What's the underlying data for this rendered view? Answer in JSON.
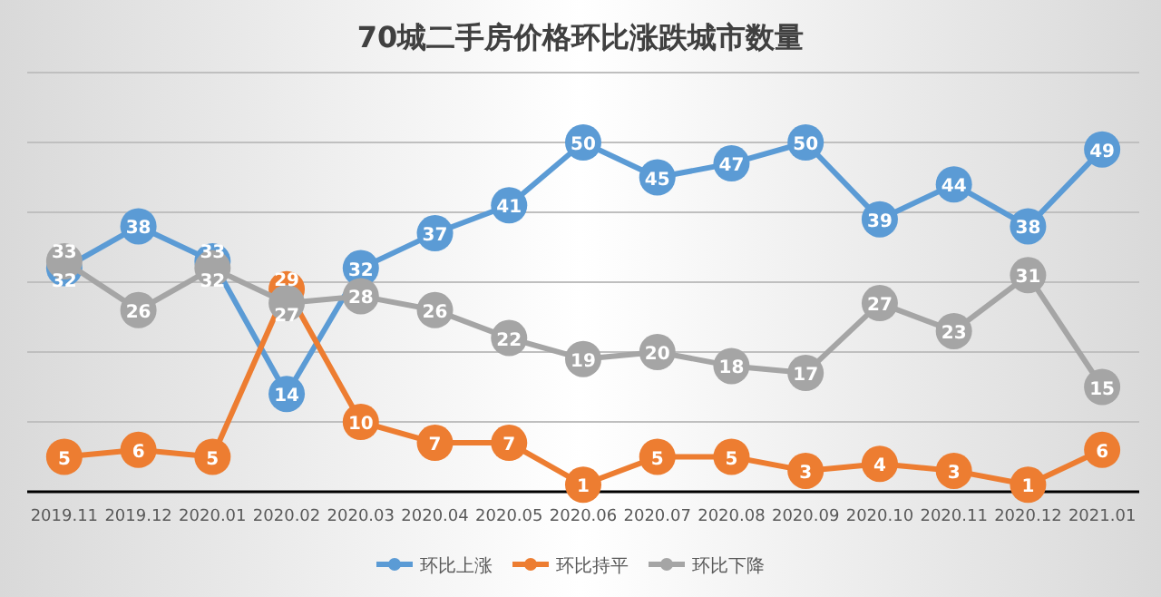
{
  "chart_data": {
    "type": "line",
    "title": "70城二手房价格环比涨跌城市数量",
    "categories": [
      "2019.11",
      "2019.12",
      "2020.01",
      "2020.02",
      "2020.03",
      "2020.04",
      "2020.05",
      "2020.06",
      "2020.07",
      "2020.08",
      "2020.09",
      "2020.10",
      "2020.11",
      "2020.12",
      "2021.01"
    ],
    "series": [
      {
        "name": "环比上涨",
        "color": "#5b9bd5",
        "values": [
          32,
          38,
          33,
          14,
          32,
          37,
          41,
          50,
          45,
          47,
          50,
          39,
          44,
          38,
          49
        ]
      },
      {
        "name": "环比持平",
        "color": "#ed7d31",
        "values": [
          5,
          6,
          5,
          29,
          10,
          7,
          7,
          1,
          5,
          5,
          3,
          4,
          3,
          1,
          6
        ]
      },
      {
        "name": "环比下降",
        "color": "#a5a5a5",
        "values": [
          33,
          26,
          32,
          27,
          28,
          26,
          22,
          19,
          20,
          18,
          17,
          27,
          23,
          31,
          15
        ]
      }
    ],
    "ylim": [
      0,
      60
    ],
    "yticks": [
      {
        "value": 0,
        "label": null
      },
      {
        "value": 10,
        "label": null
      },
      {
        "value": 20,
        "label": null
      },
      {
        "value": 30,
        "label": null
      },
      {
        "value": 40,
        "label": null
      },
      {
        "value": 50,
        "label": null
      },
      {
        "value": 60,
        "label": null
      }
    ],
    "tick_labels": "x",
    "grid": "y",
    "legend": "bottom",
    "marker": "circle",
    "line_style": "solid",
    "data_labels": true
  }
}
